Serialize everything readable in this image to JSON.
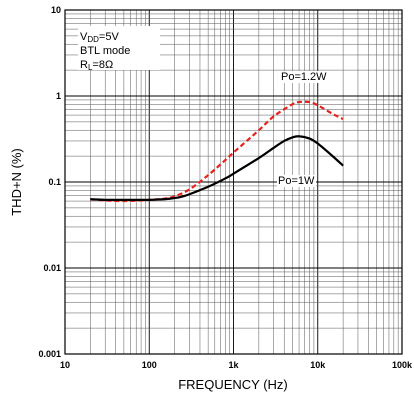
{
  "chart_data": {
    "type": "line",
    "xlabel": "FREQUENCY (Hz)",
    "ylabel": "THD+N (%)",
    "xscale": "log",
    "yscale": "log",
    "xlim": [
      10,
      100000
    ],
    "ylim": [
      0.001,
      10
    ],
    "xticks": [
      10,
      100,
      1000,
      10000,
      100000
    ],
    "xtick_labels": [
      "10",
      "100",
      "1k",
      "10k",
      "100k"
    ],
    "yticks": [
      0.001,
      0.01,
      0.1,
      1,
      10
    ],
    "ytick_labels": [
      "0.001",
      "0.01",
      "0.1",
      "1",
      "10"
    ],
    "grid": true,
    "conditions": [
      {
        "main": "V",
        "sub": "DD",
        "rest": "=5V"
      },
      {
        "main": "BTL mode",
        "sub": "",
        "rest": ""
      },
      {
        "main": "R",
        "sub": "L",
        "rest": "=8Ω"
      }
    ],
    "series": [
      {
        "name": "Po=1.2W",
        "color": "#e8211d",
        "dash": "dashed",
        "x": [
          20,
          30,
          50,
          80,
          100,
          150,
          200,
          300,
          500,
          800,
          1000,
          2000,
          3000,
          5000,
          6000,
          8000,
          10000,
          15000,
          20000
        ],
        "y": [
          0.063,
          0.061,
          0.06,
          0.061,
          0.062,
          0.064,
          0.068,
          0.082,
          0.12,
          0.18,
          0.22,
          0.4,
          0.58,
          0.8,
          0.85,
          0.85,
          0.78,
          0.62,
          0.54
        ]
      },
      {
        "name": "Po=1W",
        "color": "#000000",
        "dash": "solid",
        "x": [
          20,
          30,
          50,
          80,
          100,
          150,
          200,
          250,
          300,
          500,
          800,
          1000,
          2000,
          3000,
          4000,
          5000,
          6000,
          8000,
          10000,
          15000,
          20000
        ],
        "y": [
          0.063,
          0.062,
          0.062,
          0.062,
          0.062,
          0.063,
          0.065,
          0.068,
          0.072,
          0.088,
          0.11,
          0.125,
          0.19,
          0.25,
          0.3,
          0.33,
          0.34,
          0.32,
          0.28,
          0.2,
          0.155
        ]
      }
    ]
  }
}
